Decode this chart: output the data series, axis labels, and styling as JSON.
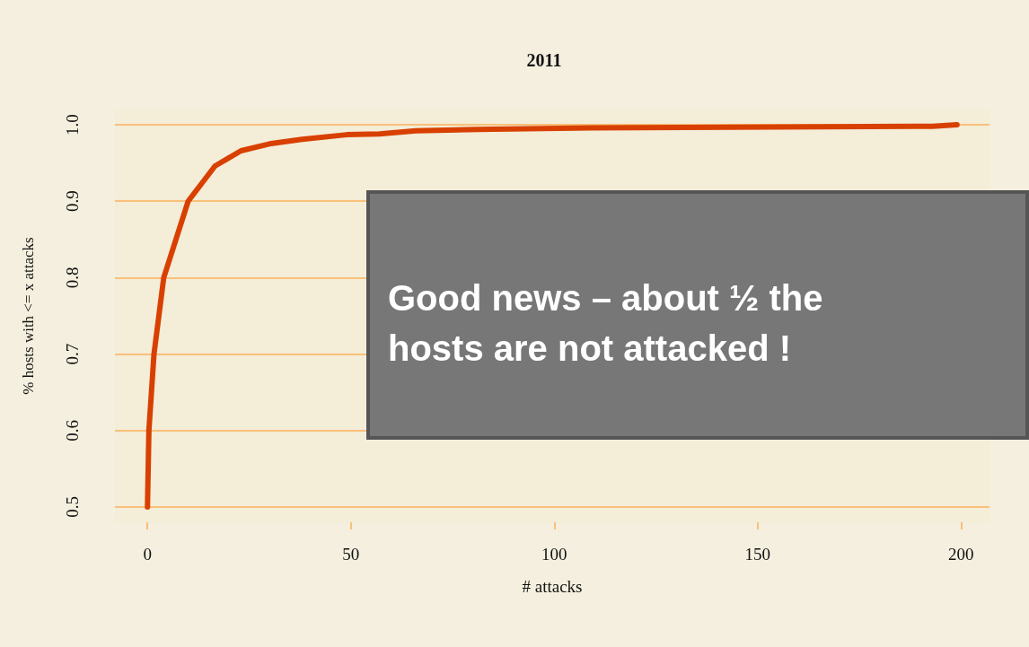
{
  "chart_data": {
    "type": "line",
    "title": "2011",
    "xlabel": "# attacks",
    "ylabel": "% hosts with <= x attacks",
    "x": [
      0,
      0.35,
      1.6,
      4,
      10,
      16.6,
      23,
      30,
      38,
      49,
      57,
      66,
      81,
      109,
      193,
      199
    ],
    "series": [
      {
        "color": "#d84000",
        "values": [
          0.5,
          0.6,
          0.7,
          0.8,
          0.9,
          0.946,
          0.966,
          0.975,
          0.981,
          0.987,
          0.988,
          0.992,
          0.994,
          0.996,
          0.998,
          1.0
        ]
      }
    ],
    "xlim": [
      -8,
      207
    ],
    "ylim": [
      0.48,
      1.02
    ],
    "xticks": [
      0,
      50,
      100,
      150,
      200
    ],
    "yticks": [
      0.5,
      0.6,
      0.7,
      0.8,
      0.9,
      {
        "value": 1,
        "label": "1.0"
      }
    ],
    "grid": "y",
    "marker": "none",
    "line_style": "solid",
    "annotations": [
      "Good news – about ½ the hosts are not attacked !"
    ]
  }
}
